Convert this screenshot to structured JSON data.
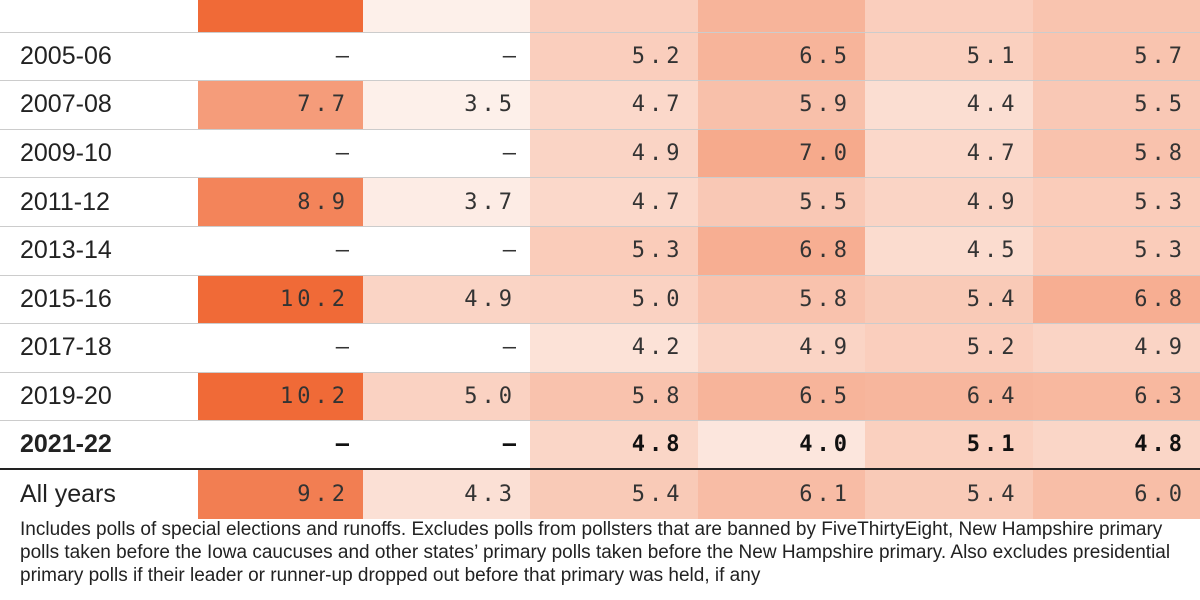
{
  "chart_data": {
    "type": "table",
    "rows": [
      {
        "label": "",
        "values": [
          null,
          null,
          null,
          null,
          null,
          null
        ],
        "partial": true
      },
      {
        "label": "2005-06",
        "values": [
          null,
          null,
          5.2,
          6.5,
          5.1,
          5.7
        ]
      },
      {
        "label": "2007-08",
        "values": [
          7.7,
          3.5,
          4.7,
          5.9,
          4.4,
          5.5
        ]
      },
      {
        "label": "2009-10",
        "values": [
          null,
          null,
          4.9,
          7.0,
          4.7,
          5.8
        ]
      },
      {
        "label": "2011-12",
        "values": [
          8.9,
          3.7,
          4.7,
          5.5,
          4.9,
          5.3
        ]
      },
      {
        "label": "2013-14",
        "values": [
          null,
          null,
          5.3,
          6.8,
          4.5,
          5.3
        ]
      },
      {
        "label": "2015-16",
        "values": [
          10.2,
          4.9,
          5.0,
          5.8,
          5.4,
          6.8
        ]
      },
      {
        "label": "2017-18",
        "values": [
          null,
          null,
          4.2,
          4.9,
          5.2,
          4.9
        ]
      },
      {
        "label": "2019-20",
        "values": [
          10.2,
          5.0,
          5.8,
          6.5,
          6.4,
          6.3
        ]
      },
      {
        "label": "2021-22",
        "values": [
          null,
          null,
          4.8,
          4.0,
          5.1,
          4.8
        ],
        "bold": true
      },
      {
        "label": "All years",
        "values": [
          9.2,
          4.3,
          5.4,
          6.1,
          5.4,
          6.0
        ]
      }
    ],
    "missing_symbol": "–",
    "color_scale": {
      "low": 3.5,
      "high": 10.2,
      "low_color": "#fdf0ea",
      "high_color": "#f06a37"
    }
  },
  "footnote": "Includes polls of special elections and runoffs. Excludes polls from pollsters that are banned by FiveThirtyEight, New Hampshire primary polls taken before the Iowa caucuses and other states’ primary polls taken before the New Hampshire primary. Also excludes presidential primary polls if their leader or runner-up dropped out before that primary was held, if any"
}
